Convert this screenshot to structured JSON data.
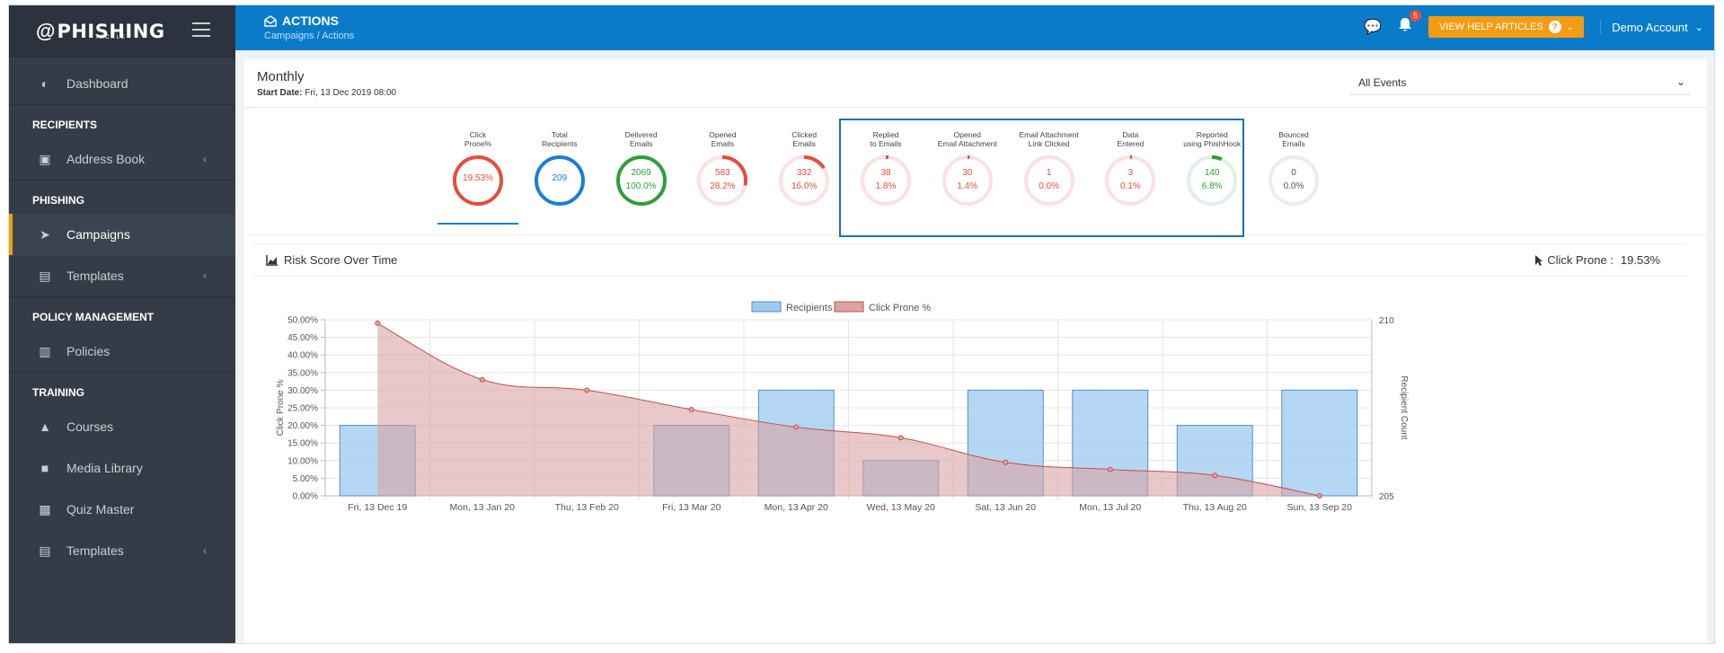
{
  "sidebar": {
    "logo": "PHISHING",
    "logo_sub": "TACKLE",
    "items": [
      {
        "label": "Dashboard",
        "type": "item",
        "icon": "dashboard-icon"
      },
      {
        "label": "RECIPIENTS",
        "type": "section"
      },
      {
        "label": "Address Book",
        "type": "item",
        "icon": "address-book-icon",
        "chevron": true
      },
      {
        "label": "PHISHING",
        "type": "section"
      },
      {
        "label": "Campaigns",
        "type": "item",
        "icon": "paper-plane-icon",
        "active": true
      },
      {
        "label": "Templates",
        "type": "item",
        "icon": "file-icon",
        "chevron": true
      },
      {
        "label": "POLICY MANAGEMENT",
        "type": "section"
      },
      {
        "label": "Policies",
        "type": "item",
        "icon": "clipboard-icon"
      },
      {
        "label": "TRAINING",
        "type": "section"
      },
      {
        "label": "Courses",
        "type": "item",
        "icon": "graduation-cap-icon"
      },
      {
        "label": "Media Library",
        "type": "item",
        "icon": "video-camera-icon"
      },
      {
        "label": "Quiz Master",
        "type": "item",
        "icon": "quiz-icon"
      },
      {
        "label": "Templates",
        "type": "item",
        "icon": "file-icon",
        "chevron": true
      }
    ]
  },
  "header": {
    "title": "ACTIONS",
    "breadcrumb": "Campaigns  /  Actions",
    "notification_count": "5",
    "help_label": "VIEW HELP ARTICLES",
    "account_label": "Demo Account"
  },
  "summary": {
    "period": "Monthly",
    "start_label": "Start Date:",
    "start_value": "Fri, 13 Dec 2019 08:00",
    "filter_value": "All Events"
  },
  "stats": [
    {
      "label1": "Click",
      "label2": "Prone%",
      "v1": "19.53%",
      "v2": "",
      "color": "#e74c3c",
      "fraction": 1.0,
      "full": true
    },
    {
      "label1": "Total",
      "label2": "Recipients",
      "v1": "209",
      "v2": "",
      "color": "#1a7fd4",
      "fraction": 1.0,
      "full": true
    },
    {
      "label1": "Delivered",
      "label2": "Emails",
      "v1": "2069",
      "v2": "100.0%",
      "color": "#2e9e3c",
      "fraction": 1.0,
      "full": true
    },
    {
      "label1": "Opened",
      "label2": "Emails",
      "v1": "583",
      "v2": "28.2%",
      "color": "#e74c3c",
      "fraction": 0.282
    },
    {
      "label1": "Clicked",
      "label2": "Emails",
      "v1": "332",
      "v2": "16.0%",
      "color": "#e74c3c",
      "fraction": 0.16
    },
    {
      "label1": "Replied",
      "label2": "to Emails",
      "v1": "38",
      "v2": "1.8%",
      "color": "#e74c3c",
      "fraction": 0.018
    },
    {
      "label1": "Opened",
      "label2": "Email Attachment",
      "v1": "30",
      "v2": "1.4%",
      "color": "#e74c3c",
      "fraction": 0.014
    },
    {
      "label1": "Email Attachment",
      "label2": "Link Clicked",
      "v1": "1",
      "v2": "0.0%",
      "color": "#e74c3c",
      "fraction": 0.0
    },
    {
      "label1": "Data",
      "label2": "Entered",
      "v1": "3",
      "v2": "0.1%",
      "color": "#e74c3c",
      "fraction": 0.001
    },
    {
      "label1": "Reported",
      "label2": "using PhishHook",
      "v1": "140",
      "v2": "6.8%",
      "color": "#2e9e3c",
      "fraction": 0.068
    },
    {
      "label1": "Bounced",
      "label2": "Emails",
      "v1": "0",
      "v2": "0.0%",
      "color": "#888888",
      "fraction": 0.0
    }
  ],
  "chart_card": {
    "title": "Risk Score Over Time",
    "prone_label": "Click Prone :",
    "prone_value": "19.53%"
  },
  "chart_data": {
    "type": "bar",
    "categories": [
      "Fri, 13 Dec 19",
      "Mon, 13 Jan 20",
      "Thu, 13 Feb 20",
      "Fri, 13 Mar 20",
      "Mon, 13 Apr 20",
      "Wed, 13 May 20",
      "Sat, 13 Jun 20",
      "Mon, 13 Jul 20",
      "Thu, 13 Aug 20",
      "Sun, 13 Sep 20"
    ],
    "series": [
      {
        "name": "Recipients",
        "type": "bar",
        "axis": "right",
        "values": [
          207,
          null,
          null,
          207,
          208,
          206,
          208,
          208,
          207,
          208
        ],
        "color": "#9ec9ef"
      },
      {
        "name": "Click Prone %",
        "type": "area",
        "axis": "left",
        "values": [
          49.0,
          33.0,
          30.0,
          24.5,
          19.5,
          16.5,
          9.5,
          7.5,
          5.8,
          0.0
        ],
        "color": "#d9a3a3"
      }
    ],
    "ylabel_left": "Click Prone %",
    "ylabel_right": "Recipient Count",
    "ylim_left": [
      0,
      50
    ],
    "ylim_right": [
      205,
      210
    ],
    "left_ticks": [
      "50.00%",
      "45.00%",
      "40.00%",
      "35.00%",
      "30.00%",
      "25.00%",
      "20.00%",
      "15.00%",
      "10.00%",
      "5.00%",
      "0.00%"
    ],
    "right_ticks": [
      "210",
      "205"
    ],
    "legend_position": "top-center",
    "grid": true
  }
}
